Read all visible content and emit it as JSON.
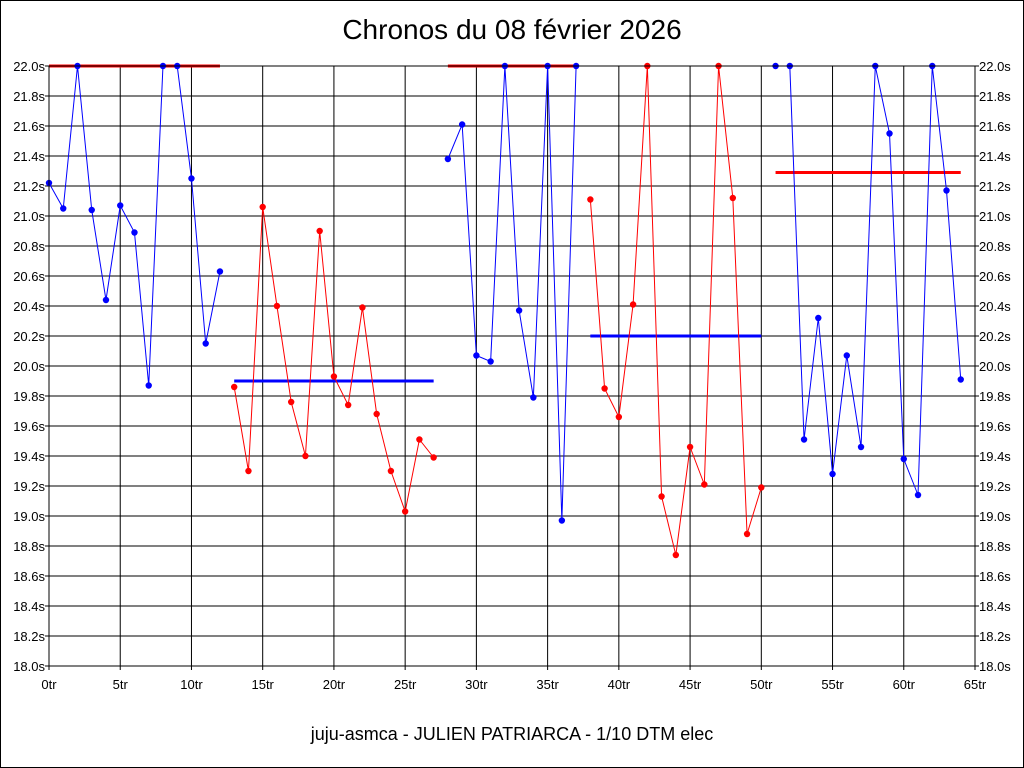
{
  "chart_data": {
    "type": "line",
    "title": "Chronos du 08 février 2026",
    "subtitle": "juju-asmca - JULIEN PATRIARCA - 1/10 DTM elec",
    "xlim": [
      0,
      65
    ],
    "ylim": [
      18.0,
      22.0
    ],
    "x_ticks": [
      0,
      5,
      10,
      15,
      20,
      25,
      30,
      35,
      40,
      45,
      50,
      55,
      60,
      65
    ],
    "x_tick_suffix": "tr",
    "y_ticks": [
      18.0,
      18.2,
      18.4,
      18.6,
      18.8,
      19.0,
      19.2,
      19.4,
      19.6,
      19.8,
      20.0,
      20.2,
      20.4,
      20.6,
      20.8,
      21.0,
      21.2,
      21.4,
      21.6,
      21.8,
      22.0
    ],
    "y_tick_suffix": "s",
    "y_axis_both_sides": true,
    "grid": true,
    "series": [
      {
        "color": "#0000ff",
        "x": [
          0,
          1,
          2,
          3,
          4,
          5,
          6,
          7,
          8,
          9,
          10,
          11,
          12
        ],
        "y": [
          21.22,
          21.05,
          22.0,
          21.04,
          20.44,
          21.07,
          20.89,
          19.87,
          22.0,
          22.0,
          21.25,
          20.15,
          20.63
        ]
      },
      {
        "color": "#ff0000",
        "x": [
          13,
          14,
          15,
          16,
          17,
          18,
          19,
          20,
          21,
          22,
          23,
          24,
          25,
          26,
          27
        ],
        "y": [
          19.86,
          19.3,
          21.06,
          20.4,
          19.76,
          19.4,
          20.9,
          19.93,
          19.74,
          20.39,
          19.68,
          19.3,
          19.03,
          19.51,
          19.39
        ]
      },
      {
        "color": "#0000ff",
        "x": [
          28,
          29,
          30,
          31,
          32,
          33,
          34,
          35,
          36,
          37
        ],
        "y": [
          21.38,
          21.61,
          20.07,
          20.03,
          22.0,
          20.37,
          19.79,
          22.0,
          18.97,
          22.0
        ]
      },
      {
        "color": "#ff0000",
        "x": [
          38,
          39,
          40,
          41,
          42,
          43,
          44,
          45,
          46,
          47,
          48,
          49,
          50
        ],
        "y": [
          21.11,
          19.85,
          19.66,
          20.41,
          22.0,
          19.13,
          18.74,
          19.46,
          19.21,
          22.0,
          21.12,
          18.88,
          19.19
        ]
      },
      {
        "color": "#0000ff",
        "x": [
          51,
          52,
          53,
          54,
          55,
          56,
          57,
          58,
          59,
          60,
          61,
          62,
          63,
          64
        ],
        "y": [
          22.0,
          22.0,
          19.51,
          20.32,
          19.28,
          20.07,
          19.46,
          22.0,
          21.55,
          19.38,
          19.14,
          22.0,
          21.17,
          19.91
        ]
      }
    ],
    "reference_lines": [
      {
        "color": "#ff0000",
        "x_start": 0,
        "x_end": 12,
        "y": 22.0
      },
      {
        "color": "#0000ff",
        "x_start": 13,
        "x_end": 27,
        "y": 19.9
      },
      {
        "color": "#ff0000",
        "x_start": 28,
        "x_end": 37,
        "y": 22.0
      },
      {
        "color": "#0000ff",
        "x_start": 38,
        "x_end": 50,
        "y": 20.2
      },
      {
        "color": "#ff0000",
        "x_start": 51,
        "x_end": 64,
        "y": 21.29
      }
    ]
  }
}
